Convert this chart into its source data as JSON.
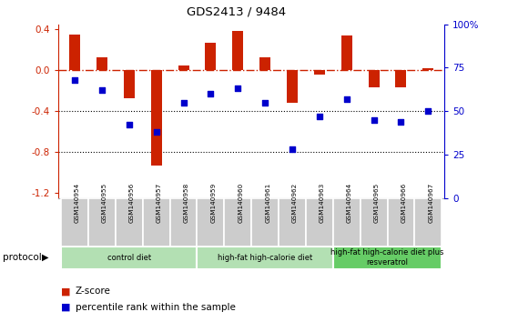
{
  "title": "GDS2413 / 9484",
  "samples": [
    "GSM140954",
    "GSM140955",
    "GSM140956",
    "GSM140957",
    "GSM140958",
    "GSM140959",
    "GSM140960",
    "GSM140961",
    "GSM140962",
    "GSM140963",
    "GSM140964",
    "GSM140965",
    "GSM140966",
    "GSM140967"
  ],
  "zscore": [
    0.35,
    0.13,
    -0.27,
    -0.93,
    0.05,
    0.27,
    0.38,
    0.13,
    -0.32,
    -0.04,
    0.34,
    -0.17,
    -0.17,
    0.02
  ],
  "percentile": [
    68,
    62,
    42,
    38,
    55,
    60,
    63,
    55,
    28,
    47,
    57,
    45,
    44,
    50
  ],
  "bar_color": "#cc2200",
  "dot_color": "#0000cc",
  "zeroline_color": "#cc2200",
  "dotted_color": "#000000",
  "ylim_left": [
    -1.25,
    0.45
  ],
  "ylim_right": [
    0,
    100
  ],
  "right_ticks": [
    0,
    25,
    50,
    75,
    100
  ],
  "right_tick_labels": [
    "0",
    "25",
    "50",
    "75",
    "100%"
  ],
  "left_ticks": [
    -1.2,
    -0.8,
    -0.4,
    0.0,
    0.4
  ],
  "groups": [
    {
      "label": "control diet",
      "start": 0,
      "end": 4,
      "color": "#b3e0b3"
    },
    {
      "label": "high-fat high-calorie diet",
      "start": 5,
      "end": 9,
      "color": "#b3e0b3"
    },
    {
      "label": "high-fat high-calorie diet plus\nresveratrol",
      "start": 10,
      "end": 13,
      "color": "#66cc66"
    }
  ],
  "legend_items": [
    {
      "label": "Z-score",
      "color": "#cc2200"
    },
    {
      "label": "percentile rank within the sample",
      "color": "#0000cc"
    }
  ],
  "protocol_label": "protocol",
  "background_color": "#ffffff"
}
